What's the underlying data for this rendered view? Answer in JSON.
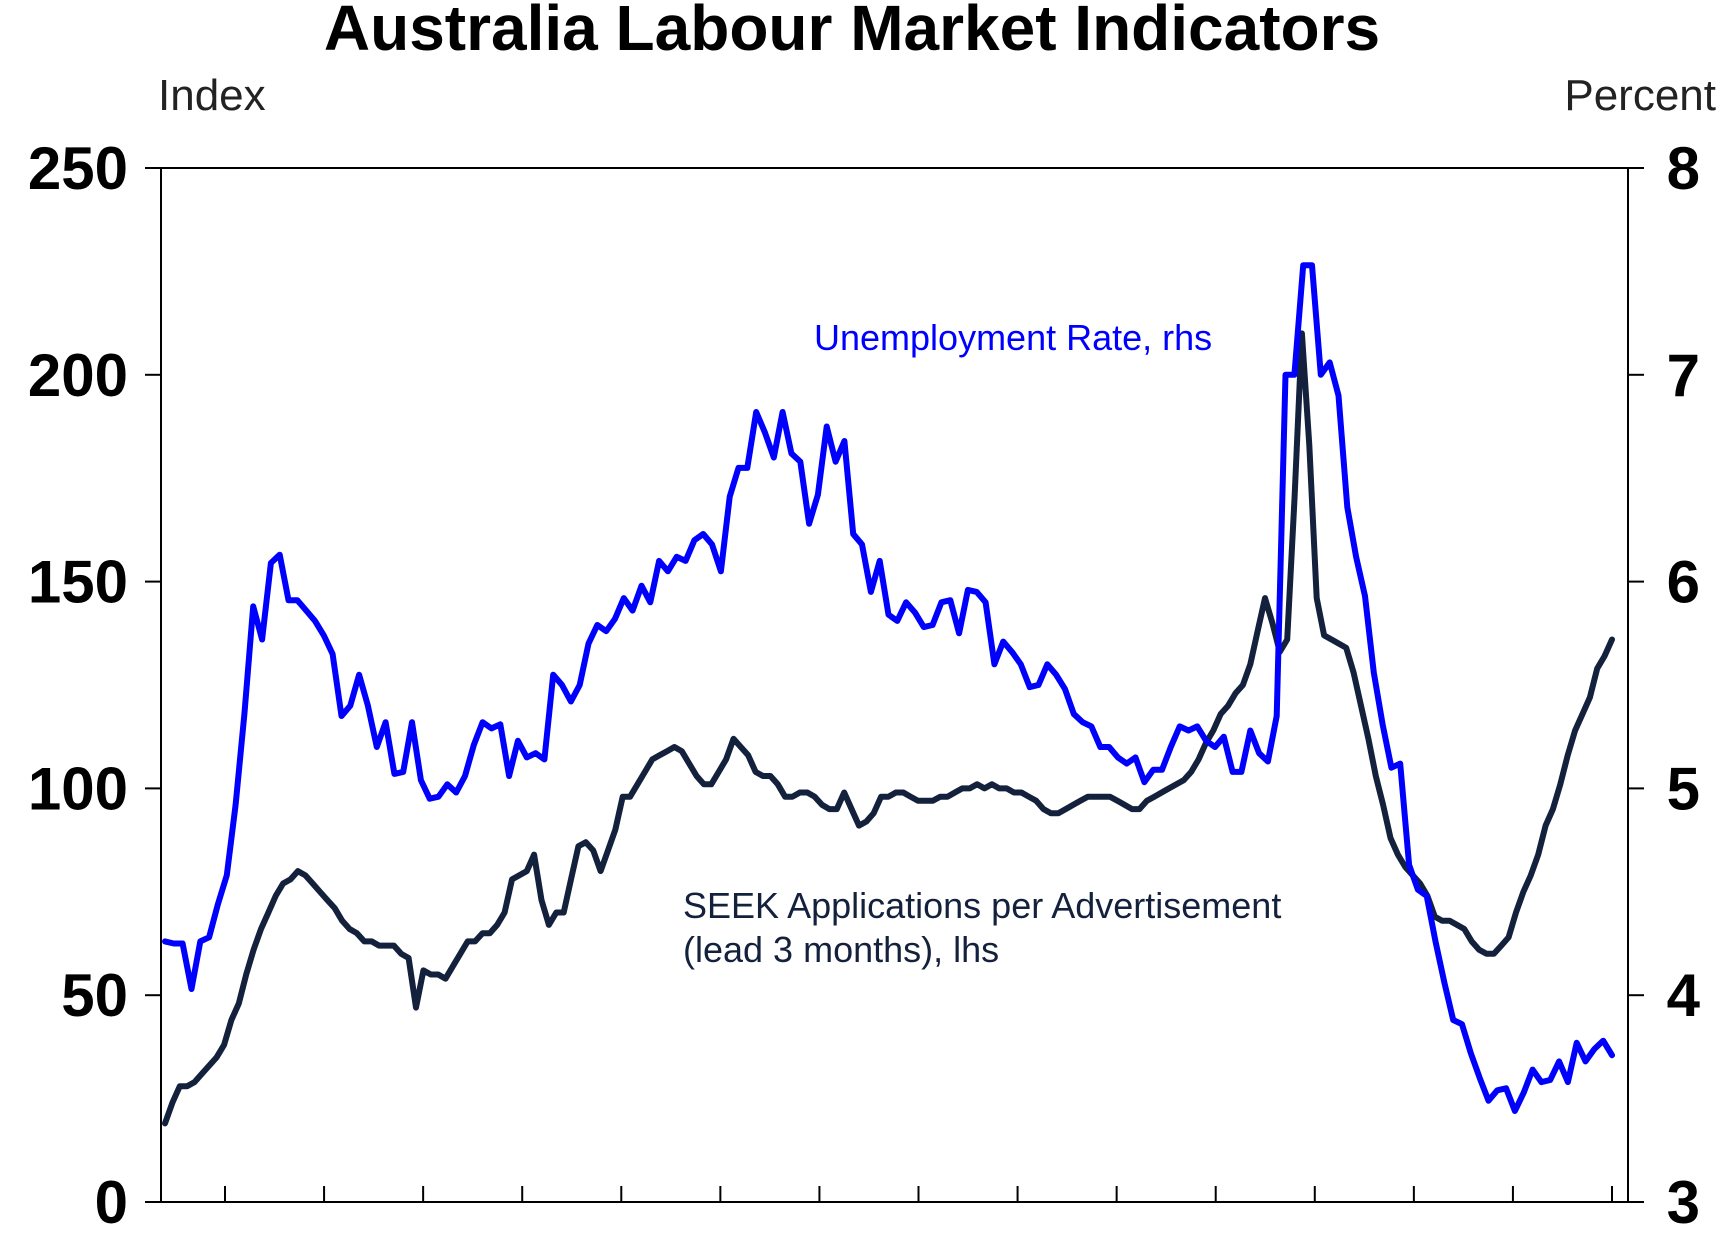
{
  "chart_data": {
    "type": "line",
    "title": "Australia Labour Market Indicators",
    "left_axis": {
      "unit_label": "Index",
      "ylim": [
        0,
        250
      ],
      "ticks": [
        "0",
        "50",
        "100",
        "150",
        "200",
        "250"
      ]
    },
    "right_axis": {
      "unit_label": "Percent",
      "ylim": [
        3,
        8
      ],
      "ticks": [
        "3",
        "4",
        "5",
        "6",
        "7",
        "8"
      ]
    },
    "x_ticks_count": 15,
    "grid": false,
    "series": [
      {
        "label": "Unemployment Rate, rhs",
        "axis": "right",
        "color": "#0000ff",
        "values": [
          4.26,
          4.25,
          4.25,
          4.03,
          4.26,
          4.28,
          4.44,
          4.58,
          4.92,
          5.36,
          5.88,
          5.72,
          6.09,
          6.13,
          5.91,
          5.91,
          5.86,
          5.81,
          5.74,
          5.65,
          5.35,
          5.4,
          5.55,
          5.4,
          5.2,
          5.32,
          5.07,
          5.08,
          5.32,
          5.04,
          4.95,
          4.96,
          5.02,
          4.98,
          5.06,
          5.21,
          5.32,
          5.29,
          5.31,
          5.06,
          5.23,
          5.15,
          5.17,
          5.14,
          5.55,
          5.5,
          5.42,
          5.5,
          5.7,
          5.79,
          5.76,
          5.82,
          5.92,
          5.86,
          5.98,
          5.9,
          6.1,
          6.05,
          6.12,
          6.1,
          6.2,
          6.23,
          6.18,
          6.05,
          6.41,
          6.55,
          6.55,
          6.82,
          6.72,
          6.6,
          6.82,
          6.62,
          6.58,
          6.28,
          6.42,
          6.75,
          6.58,
          6.68,
          6.23,
          6.18,
          5.95,
          6.1,
          5.84,
          5.81,
          5.9,
          5.85,
          5.78,
          5.79,
          5.9,
          5.91,
          5.75,
          5.96,
          5.95,
          5.9,
          5.6,
          5.71,
          5.66,
          5.6,
          5.49,
          5.5,
          5.6,
          5.55,
          5.48,
          5.36,
          5.32,
          5.3,
          5.2,
          5.2,
          5.15,
          5.12,
          5.15,
          5.03,
          5.09,
          5.09,
          5.2,
          5.3,
          5.28,
          5.3,
          5.23,
          5.2,
          5.25,
          5.08,
          5.08,
          5.28,
          5.17,
          5.13,
          5.35,
          7.0,
          7.0,
          7.53,
          7.53,
          7.0,
          7.06,
          6.9,
          6.36,
          6.12,
          5.93,
          5.56,
          5.31,
          5.1,
          5.12,
          4.63,
          4.51,
          4.48,
          4.26,
          4.06,
          3.88,
          3.86,
          3.72,
          3.6,
          3.49,
          3.54,
          3.55,
          3.44,
          3.53,
          3.64,
          3.58,
          3.59,
          3.68,
          3.58,
          3.77,
          3.68,
          3.74,
          3.78,
          3.71
        ]
      },
      {
        "label": "SEEK Applications per Advertisement",
        "label_line2": "(lead 3 months), lhs",
        "axis": "left",
        "color": "#14213d",
        "values": [
          19,
          24,
          28,
          28,
          29,
          31,
          33,
          35,
          38,
          44,
          48,
          55,
          61,
          66,
          70,
          74,
          77,
          78,
          80,
          79,
          77,
          75,
          73,
          71,
          68,
          66,
          65,
          63,
          63,
          62,
          62,
          62,
          60,
          59,
          47,
          56,
          55,
          55,
          54,
          57,
          60,
          63,
          63,
          65,
          65,
          67,
          70,
          78,
          79,
          80,
          84,
          73,
          67,
          70,
          70,
          78,
          86,
          87,
          85,
          80,
          85,
          90,
          98,
          98,
          101,
          104,
          107,
          108,
          109,
          110,
          109,
          106,
          103,
          101,
          101,
          104,
          107,
          112,
          110,
          108,
          104,
          103,
          103,
          101,
          98,
          98,
          99,
          99,
          98,
          96,
          95,
          95,
          99,
          95,
          91,
          92,
          94,
          98,
          98,
          99,
          99,
          98,
          97,
          97,
          97,
          98,
          98,
          99,
          100,
          100,
          101,
          100,
          101,
          100,
          100,
          99,
          99,
          98,
          97,
          95,
          94,
          94,
          95,
          96,
          97,
          98,
          98,
          98,
          98,
          97,
          96,
          95,
          95,
          97,
          98,
          99,
          100,
          101,
          102,
          104,
          107,
          111,
          114,
          118,
          120,
          123,
          125,
          130,
          138,
          146,
          140,
          133,
          136,
          170,
          210,
          183,
          146,
          137,
          136,
          135,
          134,
          128,
          120,
          112,
          103,
          96,
          88,
          84,
          81,
          79,
          77,
          74,
          69,
          68,
          68,
          67,
          66,
          63,
          61,
          60,
          60,
          62,
          64,
          70,
          75,
          79,
          84,
          91,
          95,
          101,
          108,
          114,
          118,
          122,
          129,
          132,
          136
        ]
      }
    ]
  },
  "annotations": {
    "unemployment": "Unemployment Rate, rhs",
    "seek_line1": "SEEK Applications per Advertisement",
    "seek_line2": "(lead 3 months), lhs"
  }
}
